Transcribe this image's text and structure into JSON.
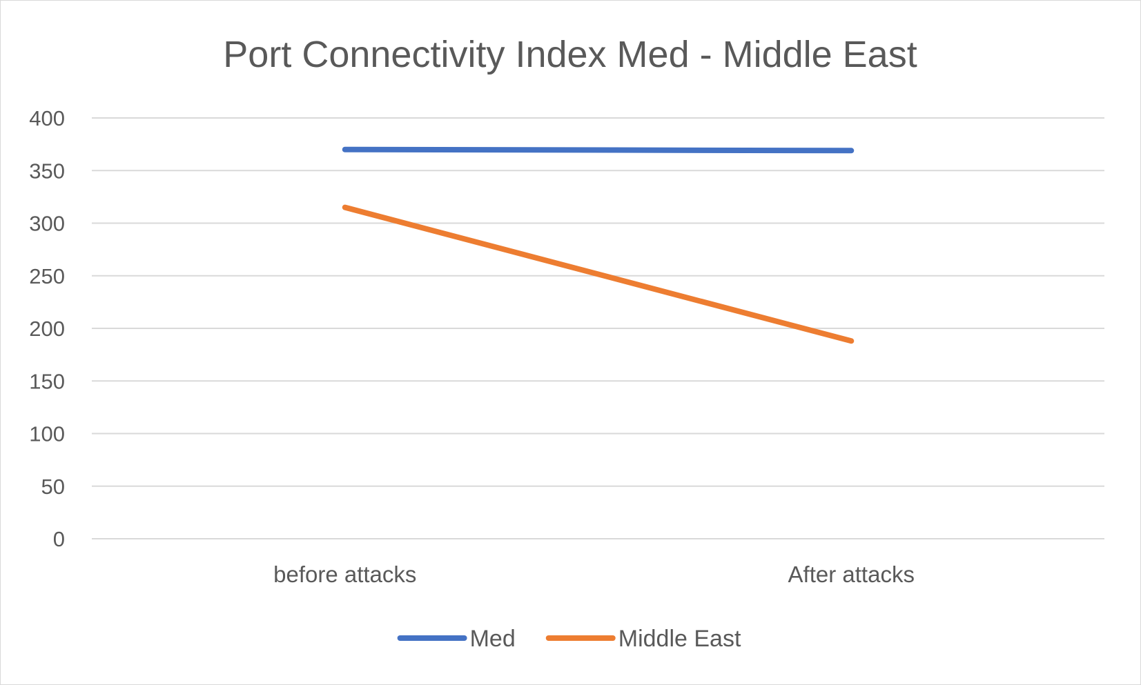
{
  "chart_data": {
    "type": "line",
    "title": "Port Connectivity Index Med - Middle East",
    "xlabel": "",
    "ylabel": "",
    "categories": [
      "before attacks",
      "After attacks"
    ],
    "series": [
      {
        "name": "Med",
        "values": [
          370,
          369
        ],
        "color": "#4472c4"
      },
      {
        "name": "Middle East",
        "values": [
          315,
          188
        ],
        "color": "#ed7d31"
      }
    ],
    "ylim": [
      0,
      400
    ],
    "yticks": [
      0,
      50,
      100,
      150,
      200,
      250,
      300,
      350,
      400
    ],
    "grid": true,
    "legend_position": "bottom"
  }
}
